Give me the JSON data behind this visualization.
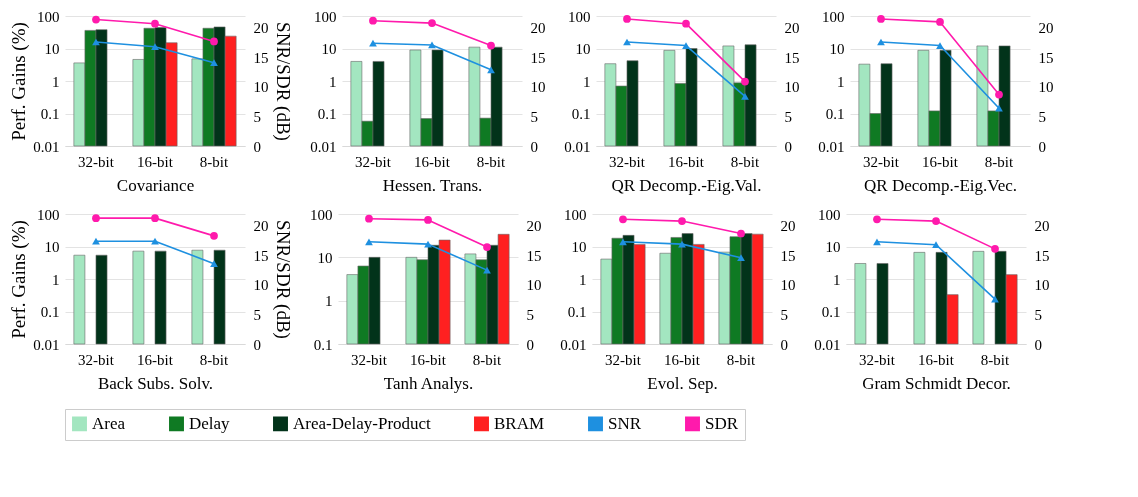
{
  "chart_data": [
    {
      "type": "bar",
      "xlabel": "Covariance",
      "ylabel": "Perf. Gains (%)",
      "y2label": "SNR/SDR (dB)",
      "categories": [
        "32-bit",
        "16-bit",
        "8-bit"
      ],
      "log": "y",
      "ylim": [
        0.01,
        100
      ],
      "yticks": [
        0.01,
        0.1,
        1,
        10,
        100
      ],
      "y2lim": [
        0,
        22
      ],
      "y2ticks": [
        0,
        5,
        10,
        15,
        20
      ],
      "grid": "y",
      "legend": "bottom",
      "series": [
        {
          "name": "Area",
          "color": "#a3e6c0",
          "values": [
            3.6,
            4.6,
            4.8
          ]
        },
        {
          "name": "Delay",
          "color": "#0f7a23",
          "values": [
            36,
            42,
            42
          ]
        },
        {
          "name": "Area-Delay-Product",
          "color": "#02331a",
          "values": [
            38,
            44,
            46
          ]
        },
        {
          "name": "BRAM",
          "color": "#ff2020",
          "values": [
            null,
            15,
            24
          ]
        },
        {
          "name": "SNR",
          "color": "#1e90e0",
          "type": "line",
          "axis": "y2",
          "marker": "triangle",
          "values": [
            17.6,
            16.8,
            14.1
          ]
        },
        {
          "name": "SDR",
          "color": "#ff1aac",
          "type": "line",
          "axis": "y2",
          "marker": "circle",
          "values": [
            21.4,
            20.7,
            17.7
          ]
        }
      ]
    },
    {
      "type": "bar",
      "xlabel": "Hessen. Trans.",
      "categories": [
        "32-bit",
        "16-bit",
        "8-bit"
      ],
      "log": "y",
      "ylim": [
        0.01,
        100
      ],
      "yticks": [
        0.01,
        0.1,
        1,
        10,
        100
      ],
      "y2lim": [
        0,
        22
      ],
      "y2ticks": [
        0,
        5,
        10,
        15,
        20
      ],
      "grid": "y",
      "legend": "bottom",
      "series": [
        {
          "name": "Area",
          "color": "#a3e6c0",
          "values": [
            4,
            9,
            11
          ]
        },
        {
          "name": "Delay",
          "color": "#0f7a23",
          "values": [
            0.058,
            0.07,
            0.072
          ]
        },
        {
          "name": "Area-Delay-Product",
          "color": "#02331a",
          "values": [
            4,
            9,
            11
          ]
        },
        {
          "name": "BRAM",
          "color": "#ff2020",
          "values": [
            null,
            null,
            null
          ]
        },
        {
          "name": "SNR",
          "color": "#1e90e0",
          "type": "line",
          "axis": "y2",
          "marker": "triangle",
          "values": [
            17.4,
            17.1,
            12.9
          ]
        },
        {
          "name": "SDR",
          "color": "#ff1aac",
          "type": "line",
          "axis": "y2",
          "marker": "circle",
          "values": [
            21.2,
            20.8,
            17.0
          ]
        }
      ]
    },
    {
      "type": "bar",
      "xlabel": "QR Decomp.-Eig.Val.",
      "categories": [
        "32-bit",
        "16-bit",
        "8-bit"
      ],
      "log": "y",
      "ylim": [
        0.01,
        100
      ],
      "yticks": [
        0.01,
        0.1,
        1,
        10,
        100
      ],
      "y2lim": [
        0,
        22
      ],
      "y2ticks": [
        0,
        5,
        10,
        15,
        20
      ],
      "grid": "y",
      "legend": "bottom",
      "series": [
        {
          "name": "Area",
          "color": "#a3e6c0",
          "values": [
            3.4,
            8.8,
            12
          ]
        },
        {
          "name": "Delay",
          "color": "#0f7a23",
          "values": [
            0.7,
            0.84,
            0.88
          ]
        },
        {
          "name": "Area-Delay-Product",
          "color": "#02331a",
          "values": [
            4.2,
            10,
            13
          ]
        },
        {
          "name": "BRAM",
          "color": "#ff2020",
          "values": [
            null,
            null,
            null
          ]
        },
        {
          "name": "SNR",
          "color": "#1e90e0",
          "type": "line",
          "axis": "y2",
          "marker": "triangle",
          "values": [
            17.6,
            17.0,
            8.4
          ]
        },
        {
          "name": "SDR",
          "color": "#ff1aac",
          "type": "line",
          "axis": "y2",
          "marker": "circle",
          "values": [
            21.5,
            20.7,
            10.9
          ]
        }
      ]
    },
    {
      "type": "bar",
      "xlabel": "QR Decomp.-Eig.Vec.",
      "categories": [
        "32-bit",
        "16-bit",
        "8-bit"
      ],
      "log": "y",
      "ylim": [
        0.01,
        100
      ],
      "yticks": [
        0.01,
        0.1,
        1,
        10,
        100
      ],
      "y2lim": [
        0,
        22
      ],
      "y2ticks": [
        0,
        5,
        10,
        15,
        20
      ],
      "grid": "y",
      "legend": "bottom",
      "series": [
        {
          "name": "Area",
          "color": "#a3e6c0",
          "values": [
            3.3,
            8.8,
            12
          ]
        },
        {
          "name": "Delay",
          "color": "#0f7a23",
          "values": [
            0.1,
            0.12,
            0.12
          ]
        },
        {
          "name": "Area-Delay-Product",
          "color": "#02331a",
          "values": [
            3.4,
            8.8,
            12
          ]
        },
        {
          "name": "BRAM",
          "color": "#ff2020",
          "values": [
            null,
            null,
            null
          ]
        },
        {
          "name": "SNR",
          "color": "#1e90e0",
          "type": "line",
          "axis": "y2",
          "marker": "triangle",
          "values": [
            17.6,
            17.0,
            6.4
          ]
        },
        {
          "name": "SDR",
          "color": "#ff1aac",
          "type": "line",
          "axis": "y2",
          "marker": "circle",
          "values": [
            21.5,
            21.0,
            8.7
          ]
        }
      ]
    },
    {
      "type": "bar",
      "xlabel": "Back Subs. Solv.",
      "ylabel": "Perf. Gains (%)",
      "y2label": "SNR/SDR (dB)",
      "categories": [
        "32-bit",
        "16-bit",
        "8-bit"
      ],
      "log": "y",
      "ylim": [
        0.01,
        100
      ],
      "yticks": [
        0.01,
        0.1,
        1,
        10,
        100
      ],
      "y2lim": [
        0,
        22
      ],
      "y2ticks": [
        0,
        5,
        10,
        15,
        20
      ],
      "grid": "y",
      "legend": "bottom",
      "series": [
        {
          "name": "Area",
          "color": "#a3e6c0",
          "values": [
            5.4,
            7.2,
            7.7
          ]
        },
        {
          "name": "Delay",
          "color": "#0f7a23",
          "values": [
            null,
            null,
            null
          ]
        },
        {
          "name": "Area-Delay-Product",
          "color": "#02331a",
          "values": [
            5.4,
            7.2,
            7.7
          ]
        },
        {
          "name": "BRAM",
          "color": "#ff2020",
          "values": [
            null,
            null,
            null
          ]
        },
        {
          "name": "SNR",
          "color": "#1e90e0",
          "type": "line",
          "axis": "y2",
          "marker": "triangle",
          "values": [
            17.4,
            17.4,
            13.6
          ]
        },
        {
          "name": "SDR",
          "color": "#ff1aac",
          "type": "line",
          "axis": "y2",
          "marker": "circle",
          "values": [
            21.3,
            21.3,
            18.3
          ]
        }
      ]
    },
    {
      "type": "bar",
      "xlabel": "Tanh Analys.",
      "categories": [
        "32-bit",
        "16-bit",
        "8-bit"
      ],
      "log": "y",
      "ylim": [
        0.1,
        100
      ],
      "yticks": [
        0.1,
        1,
        10,
        100
      ],
      "y2lim": [
        0,
        22
      ],
      "y2ticks": [
        0,
        5,
        10,
        15,
        20
      ],
      "grid": "y",
      "legend": "bottom",
      "series": [
        {
          "name": "Area",
          "color": "#a3e6c0",
          "values": [
            4,
            10,
            12
          ]
        },
        {
          "name": "Delay",
          "color": "#0f7a23",
          "values": [
            6.3,
            8.8,
            8.8
          ]
        },
        {
          "name": "Area-Delay-Product",
          "color": "#02331a",
          "values": [
            10,
            19,
            19
          ]
        },
        {
          "name": "BRAM",
          "color": "#ff2020",
          "values": [
            null,
            25,
            34
          ]
        },
        {
          "name": "SNR",
          "color": "#1e90e0",
          "type": "line",
          "axis": "y2",
          "marker": "triangle",
          "values": [
            17.3,
            16.9,
            12.5
          ]
        },
        {
          "name": "SDR",
          "color": "#ff1aac",
          "type": "line",
          "axis": "y2",
          "marker": "circle",
          "values": [
            21.2,
            21.0,
            16.4
          ]
        }
      ]
    },
    {
      "type": "bar",
      "xlabel": "Evol. Sep.",
      "categories": [
        "32-bit",
        "16-bit",
        "8-bit"
      ],
      "log": "y",
      "ylim": [
        0.01,
        100
      ],
      "yticks": [
        0.01,
        0.1,
        1,
        10,
        100
      ],
      "y2lim": [
        0,
        22
      ],
      "y2ticks": [
        0,
        5,
        10,
        15,
        20
      ],
      "grid": "y",
      "legend": "bottom",
      "series": [
        {
          "name": "Area",
          "color": "#a3e6c0",
          "values": [
            4.1,
            6.2,
            6.7
          ]
        },
        {
          "name": "Delay",
          "color": "#0f7a23",
          "values": [
            18,
            19,
            20
          ]
        },
        {
          "name": "Area-Delay-Product",
          "color": "#02331a",
          "values": [
            22,
            25,
            25
          ]
        },
        {
          "name": "BRAM",
          "color": "#ff2020",
          "values": [
            11.6,
            11.6,
            24
          ]
        },
        {
          "name": "SNR",
          "color": "#1e90e0",
          "type": "line",
          "axis": "y2",
          "marker": "triangle",
          "values": [
            17.3,
            16.9,
            14.6
          ]
        },
        {
          "name": "SDR",
          "color": "#ff1aac",
          "type": "line",
          "axis": "y2",
          "marker": "circle",
          "values": [
            21.1,
            20.8,
            18.7
          ]
        }
      ]
    },
    {
      "type": "bar",
      "xlabel": "Gram Schmidt Decor.",
      "categories": [
        "32-bit",
        "16-bit",
        "8-bit"
      ],
      "log": "y",
      "ylim": [
        0.01,
        100
      ],
      "yticks": [
        0.01,
        0.1,
        1,
        10,
        100
      ],
      "y2lim": [
        0,
        22
      ],
      "y2ticks": [
        0,
        5,
        10,
        15,
        20
      ],
      "grid": "y",
      "legend": "bottom",
      "series": [
        {
          "name": "Area",
          "color": "#a3e6c0",
          "values": [
            3.0,
            6.6,
            7.1
          ]
        },
        {
          "name": "Delay",
          "color": "#0f7a23",
          "values": [
            null,
            null,
            null
          ]
        },
        {
          "name": "Area-Delay-Product",
          "color": "#02331a",
          "values": [
            3.0,
            6.6,
            7.1
          ]
        },
        {
          "name": "BRAM",
          "color": "#ff2020",
          "values": [
            null,
            0.33,
            1.36
          ]
        },
        {
          "name": "SNR",
          "color": "#1e90e0",
          "type": "line",
          "axis": "y2",
          "marker": "triangle",
          "values": [
            17.3,
            16.8,
            7.6
          ]
        },
        {
          "name": "SDR",
          "color": "#ff1aac",
          "type": "line",
          "axis": "y2",
          "marker": "circle",
          "values": [
            21.1,
            20.8,
            16.1
          ]
        }
      ]
    }
  ]
}
